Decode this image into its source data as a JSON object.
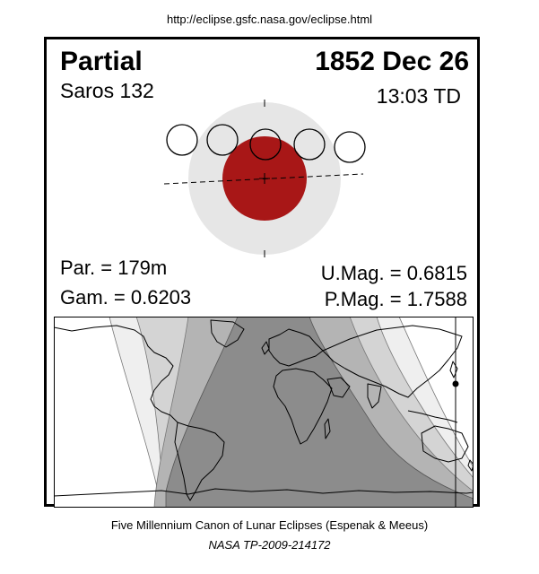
{
  "url": "http://eclipse.gsfc.nasa.gov/eclipse.html",
  "eclipse": {
    "type": "Partial",
    "saros": "Saros 132",
    "date": "1852 Dec 26",
    "time": "13:03 TD",
    "par": "Par. = 179m",
    "gam": "Gam. = 0.6203",
    "umag": "U.Mag. = 0.6815",
    "pmag": "P.Mag. = 1.7588"
  },
  "colors": {
    "umbra_fill": "#a81717",
    "penumbra_fill": "#e6e6e6",
    "map_visible": "#8c8c8c",
    "map_penumbral_1": "#b4b4b4",
    "map_penumbral_2": "#d4d4d4",
    "map_penumbral_3": "#efefef"
  },
  "footer": {
    "canon": "Five Millennium Canon of Lunar Eclipses (Espenak & Meeus)",
    "reference": "NASA TP-2009-214172"
  }
}
